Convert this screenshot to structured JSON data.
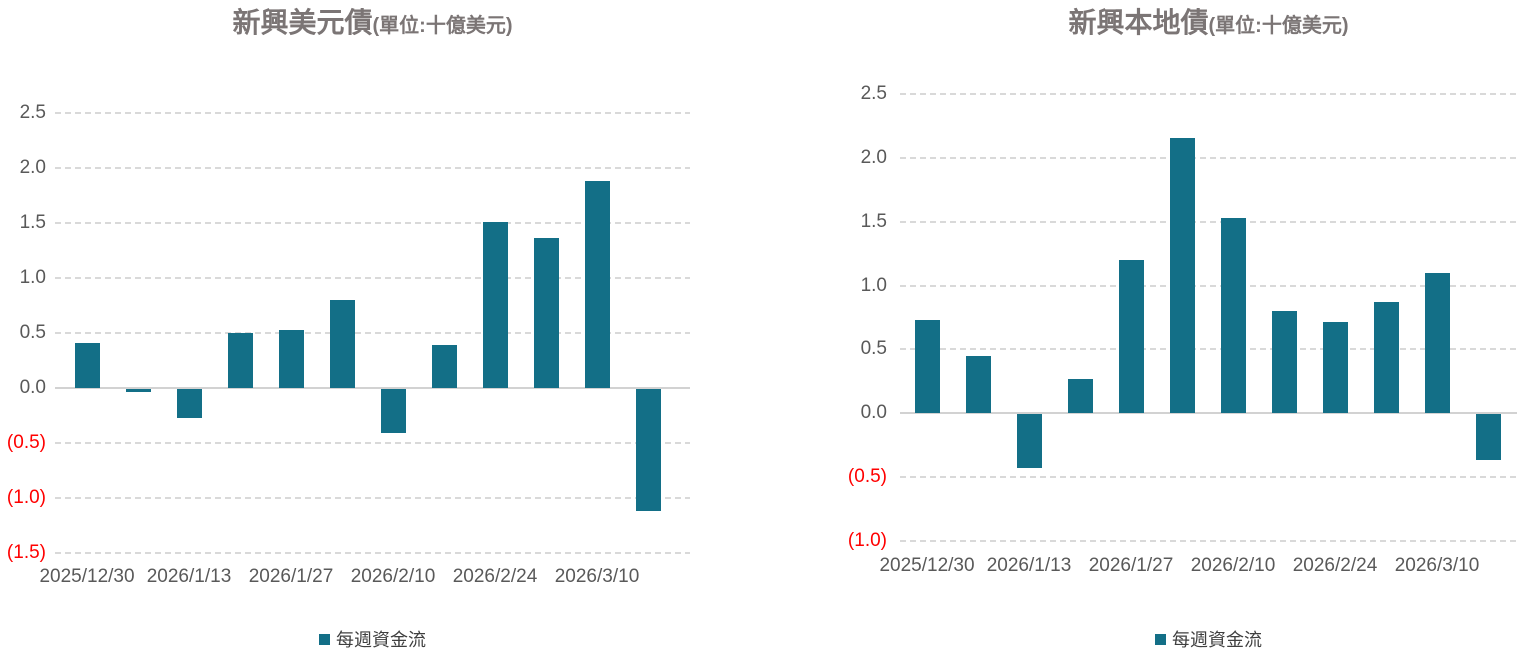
{
  "colors": {
    "bar": "#136F87",
    "axis_text": "#595959",
    "negative_axis_text": "#FF0000",
    "title_text": "#7B7575",
    "legend_text": "#3F3F3F",
    "gridline": "#D9D9D9",
    "zero_line": "#D2D2D2",
    "background": "#FFFFFF"
  },
  "chart_data": [
    {
      "type": "bar",
      "title": "新興美元債",
      "unit_label": "(單位:十億美元)",
      "legend": "每週資金流",
      "legend_position": "bottom",
      "grid": "horizontal-dashed",
      "x_tick_labels": [
        "2025/12/30",
        "2026/1/13",
        "2026/1/27",
        "2026/2/10",
        "2026/2/24",
        "2026/3/10"
      ],
      "x_tick_interval": 2,
      "series": [
        {
          "name": "每週資金流",
          "values": [
            0.41,
            -0.03,
            -0.26,
            0.5,
            0.53,
            0.8,
            -0.4,
            0.39,
            1.51,
            1.36,
            1.88,
            -1.11
          ]
        }
      ],
      "y_tick_labels": [
        "2.5",
        "2.0",
        "1.5",
        "1.0",
        "0.5",
        "0.0",
        "(0.5)",
        "(1.0)",
        "(1.5)"
      ],
      "y_tick_values": [
        2.5,
        2.0,
        1.5,
        1.0,
        0.5,
        0.0,
        -0.5,
        -1.0,
        -1.5
      ],
      "ylim": [
        -1.5,
        2.5
      ]
    },
    {
      "type": "bar",
      "title": "新興本地債",
      "unit_label": "(單位:十億美元)",
      "legend": "每週資金流",
      "legend_position": "bottom",
      "grid": "horizontal-dashed",
      "x_tick_labels": [
        "2025/12/30",
        "2026/1/13",
        "2026/1/27",
        "2026/2/10",
        "2026/2/24",
        "2026/3/10"
      ],
      "x_tick_interval": 2,
      "series": [
        {
          "name": "每週資金流",
          "values": [
            0.73,
            0.45,
            -0.42,
            0.27,
            1.2,
            2.16,
            1.53,
            0.8,
            0.71,
            0.87,
            1.1,
            -0.36
          ]
        }
      ],
      "y_tick_labels": [
        "2.5",
        "2.0",
        "1.5",
        "1.0",
        "0.5",
        "0.0",
        "(0.5)",
        "(1.0)"
      ],
      "y_tick_values": [
        2.5,
        2.0,
        1.5,
        1.0,
        0.5,
        0.0,
        -0.5,
        -1.0
      ],
      "ylim": [
        -1.0,
        2.5
      ]
    }
  ]
}
